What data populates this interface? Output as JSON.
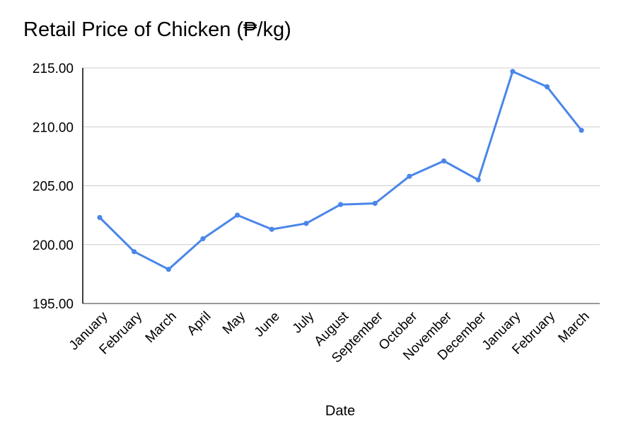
{
  "chart_data": {
    "type": "line",
    "title": "Retail Price of Chicken (₱/kg)",
    "xlabel": "Date",
    "ylabel": "",
    "ylim": [
      195,
      215
    ],
    "yticks": [
      "195.00",
      "200.00",
      "205.00",
      "210.00",
      "215.00"
    ],
    "ytick_values": [
      195,
      200,
      205,
      210,
      215
    ],
    "grid": true,
    "categories": [
      "January",
      "February",
      "March",
      "April",
      "May",
      "June",
      "July",
      "August",
      "September",
      "October",
      "November",
      "December",
      "January",
      "February",
      "March"
    ],
    "series": [
      {
        "values": [
          202.3,
          199.4,
          197.9,
          200.5,
          202.5,
          201.3,
          201.8,
          203.4,
          203.5,
          205.8,
          207.1,
          205.5,
          214.7,
          213.4,
          209.7
        ]
      }
    ],
    "colors": {
      "line": "#4a86e8",
      "grid": "#cccccc",
      "axis": "#000000"
    }
  }
}
